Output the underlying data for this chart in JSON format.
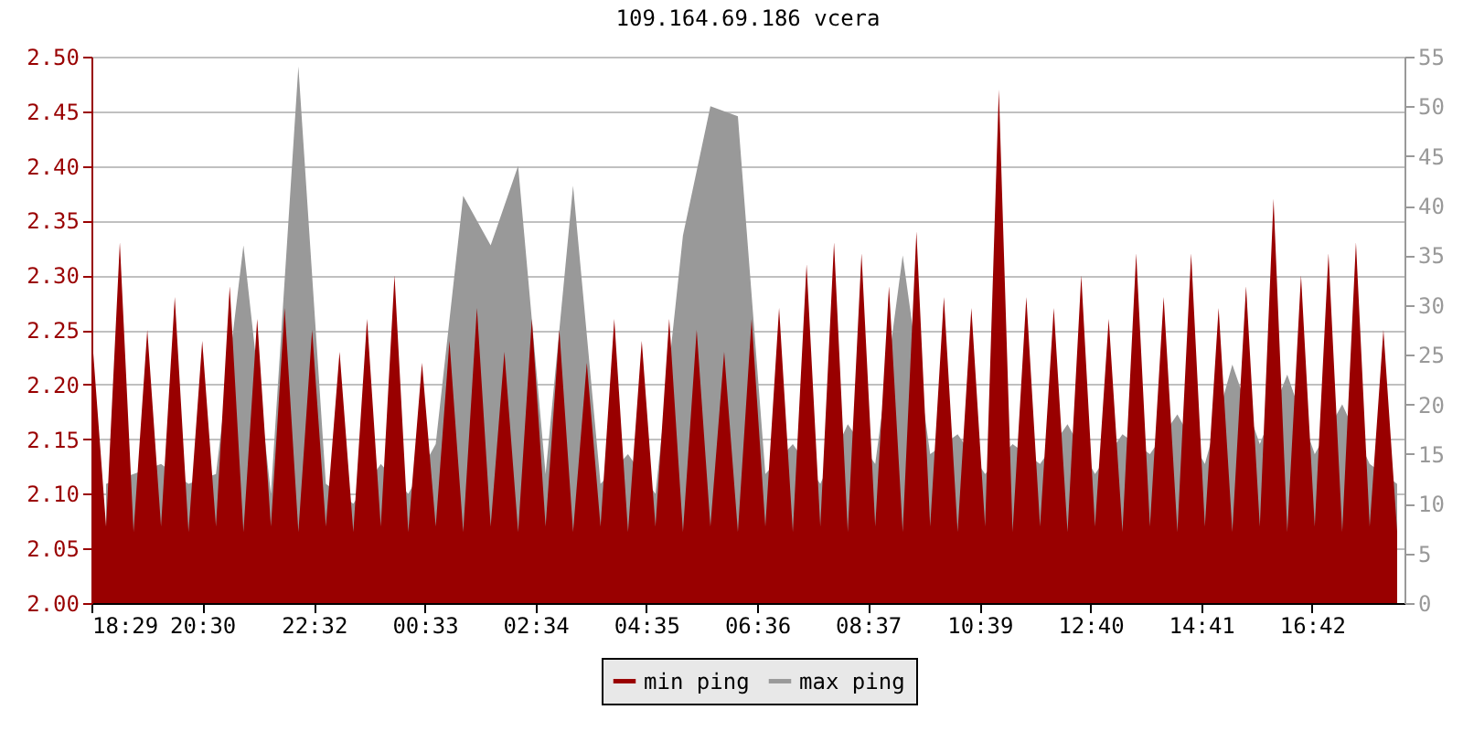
{
  "chart_data": {
    "type": "area",
    "title": "109.164.69.186 vcera",
    "legend": "bottom",
    "grid": "y",
    "xlim": [
      "--01-01T18:29",
      "--01-02T18:23"
    ],
    "xticks": [
      {
        "value": "--01-01T18:29",
        "label": "18:29"
      },
      {
        "value": "--01-01T20:30",
        "label": "20:30"
      },
      {
        "value": "--01-01T22:32",
        "label": "22:32"
      },
      {
        "value": "--01-02T00:33",
        "label": "00:33"
      },
      {
        "value": "--01-02T02:34",
        "label": "02:34"
      },
      {
        "value": "--01-02T04:35",
        "label": "04:35"
      },
      {
        "value": "--01-02T06:36",
        "label": "06:36"
      },
      {
        "value": "--01-02T08:37",
        "label": "08:37"
      },
      {
        "value": "--01-02T10:39",
        "label": "10:39"
      },
      {
        "value": "--01-02T12:40",
        "label": "12:40"
      },
      {
        "value": "--01-02T14:41",
        "label": "14:41"
      },
      {
        "value": "--01-02T16:42",
        "label": "16:42"
      }
    ],
    "ylim": [
      2.0,
      2.5
    ],
    "yticks": [
      {
        "value": 2.0,
        "label": "2.00"
      },
      2.05,
      {
        "value": 2.1,
        "label": "2.10"
      },
      2.15,
      {
        "value": 2.2,
        "label": "2.20"
      },
      2.25,
      {
        "value": 2.3,
        "label": "2.30"
      },
      2.35,
      {
        "value": 2.4,
        "label": "2.40"
      },
      2.45,
      {
        "value": 2.5,
        "label": "2.50"
      }
    ],
    "y2lim": [
      0,
      55
    ],
    "y2ticks": [
      0,
      5,
      10,
      15,
      20,
      25,
      30,
      35,
      40,
      45,
      50,
      55
    ],
    "x": [
      "--01-01T18:30",
      "--01-01T18:45",
      "--01-01T19:00",
      "--01-01T19:15",
      "--01-01T19:30",
      "--01-01T19:45",
      "--01-01T20:00",
      "--01-01T20:15",
      "--01-01T20:30",
      "--01-01T20:45",
      "--01-01T21:00",
      "--01-01T21:15",
      "--01-01T21:30",
      "--01-01T21:45",
      "--01-01T22:00",
      "--01-01T22:15",
      "--01-01T22:30",
      "--01-01T22:45",
      "--01-01T23:00",
      "--01-01T23:15",
      "--01-01T23:30",
      "--01-01T23:45",
      "--01-02T00:00",
      "--01-02T00:15",
      "--01-02T00:30",
      "--01-02T00:45",
      "--01-02T01:00",
      "--01-02T01:15",
      "--01-02T01:30",
      "--01-02T01:45",
      "--01-02T02:00",
      "--01-02T02:15",
      "--01-02T02:30",
      "--01-02T02:45",
      "--01-02T03:00",
      "--01-02T03:15",
      "--01-02T03:30",
      "--01-02T03:45",
      "--01-02T04:00",
      "--01-02T04:15",
      "--01-02T04:30",
      "--01-02T04:45",
      "--01-02T05:00",
      "--01-02T05:15",
      "--01-02T05:30",
      "--01-02T05:45",
      "--01-02T06:00",
      "--01-02T06:15",
      "--01-02T06:30",
      "--01-02T06:45",
      "--01-02T07:00",
      "--01-02T07:15",
      "--01-02T07:30",
      "--01-02T07:45",
      "--01-02T08:00",
      "--01-02T08:15",
      "--01-02T08:30",
      "--01-02T08:45",
      "--01-02T09:00",
      "--01-02T09:15",
      "--01-02T09:30",
      "--01-02T09:45",
      "--01-02T10:00",
      "--01-02T10:15",
      "--01-02T10:30",
      "--01-02T10:45",
      "--01-02T11:00",
      "--01-02T11:15",
      "--01-02T11:30",
      "--01-02T11:45",
      "--01-02T12:00",
      "--01-02T12:15",
      "--01-02T12:30",
      "--01-02T12:45",
      "--01-02T13:00",
      "--01-02T13:15",
      "--01-02T13:30",
      "--01-02T13:45",
      "--01-02T14:00",
      "--01-02T14:15",
      "--01-02T14:30",
      "--01-02T14:45",
      "--01-02T15:00",
      "--01-02T15:15",
      "--01-02T15:30",
      "--01-02T15:45",
      "--01-02T16:00",
      "--01-02T16:15",
      "--01-02T16:30",
      "--01-02T16:45",
      "--01-02T17:00",
      "--01-02T17:15",
      "--01-02T17:30",
      "--01-02T17:45",
      "--01-02T18:00",
      "--01-02T18:15"
    ],
    "series": [
      {
        "name": "max ping",
        "color": "#999999",
        "axis": "y2",
        "x": [
          "--01-01T18:45",
          "--01-01T19:15",
          "--01-01T19:45",
          "--01-01T20:15",
          "--01-01T20:45",
          "--01-01T21:15",
          "--01-01T21:45",
          "--01-01T22:15",
          "--01-01T22:45",
          "--01-01T23:15",
          "--01-01T23:45",
          "--01-02T00:15",
          "--01-02T00:45",
          "--01-02T01:15",
          "--01-02T01:45",
          "--01-02T02:15",
          "--01-02T02:45",
          "--01-02T03:15",
          "--01-02T03:45",
          "--01-02T04:15",
          "--01-02T04:45",
          "--01-02T05:15",
          "--01-02T05:45",
          "--01-02T06:15",
          "--01-02T06:45",
          "--01-02T07:15",
          "--01-02T07:45",
          "--01-02T08:15",
          "--01-02T08:45",
          "--01-02T09:15",
          "--01-02T09:45",
          "--01-02T10:15",
          "--01-02T10:45",
          "--01-02T11:15",
          "--01-02T11:45",
          "--01-02T12:15",
          "--01-02T12:45",
          "--01-02T13:15",
          "--01-02T13:45",
          "--01-02T14:15",
          "--01-02T14:45",
          "--01-02T15:15",
          "--01-02T15:45",
          "--01-02T16:15",
          "--01-02T16:45",
          "--01-02T17:15",
          "--01-02T17:45",
          "--01-02T18:15"
        ],
        "values": [
          12,
          13,
          14,
          12,
          13,
          36,
          11,
          54,
          12,
          10,
          14,
          11,
          16,
          41,
          36,
          44,
          13,
          42,
          12,
          15,
          11,
          37,
          50,
          49,
          13,
          16,
          12,
          18,
          14,
          35,
          15,
          17,
          13,
          16,
          14,
          18,
          13,
          17,
          15,
          19,
          14,
          24,
          16,
          23,
          15,
          20,
          14,
          12
        ]
      },
      {
        "name": "min ping",
        "color": "#990000",
        "values": [
          2.24,
          2.07,
          2.33,
          2.065,
          2.25,
          2.07,
          2.28,
          2.065,
          2.24,
          2.07,
          2.29,
          2.065,
          2.26,
          2.07,
          2.27,
          2.065,
          2.25,
          2.07,
          2.23,
          2.065,
          2.26,
          2.07,
          2.3,
          2.065,
          2.22,
          2.07,
          2.24,
          2.065,
          2.27,
          2.07,
          2.23,
          2.065,
          2.26,
          2.07,
          2.25,
          2.065,
          2.22,
          2.07,
          2.26,
          2.065,
          2.24,
          2.07,
          2.26,
          2.065,
          2.25,
          2.07,
          2.23,
          2.065,
          2.26,
          2.07,
          2.27,
          2.065,
          2.31,
          2.07,
          2.33,
          2.065,
          2.32,
          2.07,
          2.29,
          2.065,
          2.34,
          2.07,
          2.28,
          2.065,
          2.27,
          2.07,
          2.47,
          2.065,
          2.28,
          2.07,
          2.27,
          2.065,
          2.3,
          2.07,
          2.26,
          2.065,
          2.32,
          2.07,
          2.28,
          2.065,
          2.32,
          2.07,
          2.27,
          2.065,
          2.29,
          2.07,
          2.37,
          2.065,
          2.3,
          2.07,
          2.32,
          2.065,
          2.33,
          2.07,
          2.25,
          2.065
        ]
      }
    ]
  }
}
